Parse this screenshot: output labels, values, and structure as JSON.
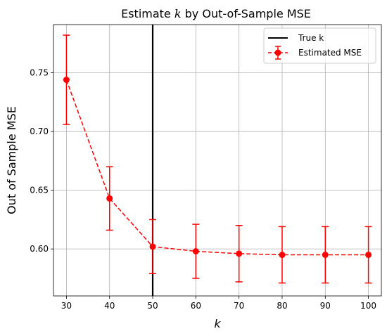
{
  "chart_data": {
    "type": "line",
    "title_prefix": "Estimate ",
    "title_var": "k",
    "title_suffix": " by Out-of-Sample MSE",
    "xlabel": "k",
    "ylabel": "Out of Sample MSE",
    "xlim": [
      27,
      103
    ],
    "ylim": [
      0.56,
      0.791
    ],
    "x_ticks": [
      30,
      40,
      50,
      60,
      70,
      80,
      90,
      100
    ],
    "y_ticks": [
      0.6,
      0.65,
      0.7,
      0.75
    ],
    "y_tick_labels": [
      "0.60",
      "0.65",
      "0.70",
      "0.75"
    ],
    "grid": true,
    "true_k": 50,
    "series": [
      {
        "name": "Estimated MSE",
        "color": "#ff0000",
        "line_style": "dashed",
        "marker": "circle",
        "x": [
          30,
          40,
          50,
          60,
          70,
          80,
          90,
          100
        ],
        "y": [
          0.744,
          0.643,
          0.602,
          0.598,
          0.596,
          0.595,
          0.595,
          0.595
        ],
        "err": [
          0.038,
          0.027,
          0.023,
          0.023,
          0.024,
          0.024,
          0.024,
          0.024
        ]
      }
    ],
    "legend": {
      "position": "top-right",
      "entries": [
        {
          "label": "True k",
          "color": "#000000",
          "style": "solid"
        },
        {
          "label": "Estimated MSE",
          "color": "#ff0000",
          "style": "dashed-marker-errorbar"
        }
      ]
    }
  }
}
